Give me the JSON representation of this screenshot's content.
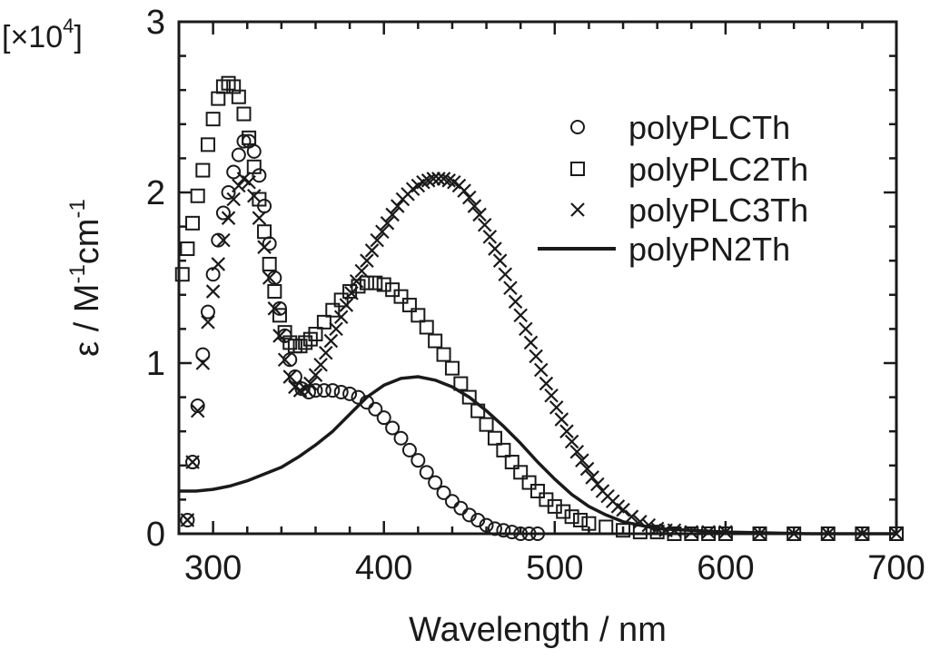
{
  "chart_data": {
    "type": "scatter",
    "title": "",
    "xlabel": "Wavelength / nm",
    "ylabel": {
      "prefix": "ε / M",
      "sup1": "-1",
      "mid": "cm",
      "sup2": "-1"
    },
    "multiplier": {
      "open": "[×10",
      "exp": "4",
      "close": "]"
    },
    "xlim": [
      280,
      700
    ],
    "ylim": [
      0,
      3
    ],
    "xticks": [
      {
        "value": 300,
        "label": "300"
      },
      {
        "value": 400,
        "label": "400"
      },
      {
        "value": 500,
        "label": "500"
      },
      {
        "value": 600,
        "label": "600"
      },
      {
        "value": 700,
        "label": "700"
      }
    ],
    "yticks": [
      {
        "value": 0,
        "label": "0"
      },
      {
        "value": 1,
        "label": "1"
      },
      {
        "value": 2,
        "label": "2"
      },
      {
        "value": 3,
        "label": "3"
      }
    ],
    "grid": false,
    "legend_position": "top-right",
    "series": [
      {
        "name": "polyPLCTh",
        "marker": "circle",
        "x": [
          285,
          288,
          291,
          294,
          297,
          300,
          303,
          306,
          309,
          312,
          315,
          318,
          321,
          324,
          327,
          330,
          333,
          336,
          339,
          342,
          345,
          348,
          352,
          356,
          360,
          365,
          370,
          375,
          380,
          385,
          390,
          395,
          400,
          405,
          410,
          415,
          420,
          425,
          430,
          435,
          440,
          445,
          450,
          455,
          460,
          465,
          470,
          475,
          480,
          485,
          490
        ],
        "y": [
          0.08,
          0.42,
          0.75,
          1.05,
          1.3,
          1.52,
          1.72,
          1.88,
          2.0,
          2.12,
          2.22,
          2.3,
          2.3,
          2.24,
          2.1,
          1.92,
          1.7,
          1.5,
          1.32,
          1.16,
          1.02,
          0.92,
          0.85,
          0.83,
          0.84,
          0.84,
          0.84,
          0.83,
          0.82,
          0.8,
          0.77,
          0.73,
          0.68,
          0.62,
          0.56,
          0.49,
          0.43,
          0.36,
          0.3,
          0.24,
          0.19,
          0.15,
          0.11,
          0.08,
          0.05,
          0.03,
          0.02,
          0.01,
          0.0,
          0.0,
          0.0
        ]
      },
      {
        "name": "polyPLC2Th",
        "marker": "square",
        "x": [
          282,
          285,
          288,
          291,
          294,
          297,
          300,
          303,
          306,
          309,
          312,
          315,
          318,
          321,
          324,
          327,
          330,
          333,
          336,
          339,
          342,
          345,
          348,
          351,
          354,
          357,
          360,
          365,
          370,
          375,
          380,
          385,
          390,
          395,
          400,
          405,
          410,
          415,
          420,
          425,
          430,
          435,
          440,
          445,
          450,
          455,
          460,
          465,
          470,
          475,
          480,
          485,
          490,
          495,
          500,
          505,
          510,
          515,
          520,
          530,
          540,
          550,
          560,
          570,
          580,
          590,
          600,
          620,
          640,
          660,
          680,
          700
        ],
        "y": [
          1.52,
          1.67,
          1.82,
          1.98,
          2.13,
          2.28,
          2.43,
          2.55,
          2.62,
          2.64,
          2.62,
          2.56,
          2.46,
          2.32,
          2.15,
          1.96,
          1.77,
          1.58,
          1.42,
          1.28,
          1.18,
          1.12,
          1.1,
          1.1,
          1.12,
          1.14,
          1.17,
          1.24,
          1.31,
          1.37,
          1.42,
          1.45,
          1.47,
          1.47,
          1.46,
          1.43,
          1.39,
          1.34,
          1.28,
          1.21,
          1.13,
          1.05,
          0.97,
          0.88,
          0.8,
          0.72,
          0.64,
          0.56,
          0.49,
          0.42,
          0.36,
          0.3,
          0.25,
          0.2,
          0.16,
          0.13,
          0.1,
          0.08,
          0.06,
          0.04,
          0.02,
          0.01,
          0.01,
          0.0,
          0.0,
          0.0,
          0.0,
          0.0,
          0.0,
          0.0,
          0.0,
          0.0
        ]
      },
      {
        "name": "polyPLC3Th",
        "marker": "cross",
        "x": [
          285,
          288,
          291,
          294,
          297,
          300,
          303,
          306,
          309,
          312,
          315,
          318,
          321,
          324,
          327,
          330,
          333,
          336,
          339,
          342,
          345,
          348,
          351,
          354,
          357,
          360,
          363,
          366,
          369,
          372,
          375,
          378,
          381,
          384,
          387,
          390,
          393,
          396,
          399,
          402,
          405,
          408,
          411,
          414,
          417,
          420,
          423,
          426,
          429,
          432,
          435,
          438,
          441,
          444,
          447,
          450,
          453,
          456,
          459,
          462,
          465,
          468,
          471,
          474,
          477,
          480,
          483,
          486,
          489,
          492,
          495,
          498,
          501,
          504,
          507,
          510,
          513,
          516,
          519,
          522,
          525,
          528,
          531,
          534,
          537,
          540,
          545,
          550,
          555,
          560,
          565,
          570,
          580,
          590,
          600,
          620,
          640,
          660,
          680,
          700
        ],
        "y": [
          0.08,
          0.42,
          0.72,
          1.0,
          1.24,
          1.42,
          1.58,
          1.72,
          1.85,
          1.96,
          2.04,
          2.08,
          2.06,
          1.98,
          1.85,
          1.68,
          1.5,
          1.32,
          1.16,
          1.02,
          0.92,
          0.86,
          0.84,
          0.85,
          0.88,
          0.93,
          0.99,
          1.06,
          1.13,
          1.2,
          1.27,
          1.34,
          1.41,
          1.48,
          1.54,
          1.6,
          1.66,
          1.72,
          1.77,
          1.82,
          1.87,
          1.92,
          1.96,
          1.99,
          2.02,
          2.04,
          2.06,
          2.07,
          2.08,
          2.08,
          2.08,
          2.07,
          2.06,
          2.04,
          2.01,
          1.97,
          1.92,
          1.87,
          1.81,
          1.74,
          1.67,
          1.6,
          1.52,
          1.44,
          1.36,
          1.28,
          1.2,
          1.12,
          1.04,
          0.96,
          0.88,
          0.81,
          0.74,
          0.67,
          0.6,
          0.54,
          0.48,
          0.43,
          0.38,
          0.33,
          0.29,
          0.25,
          0.22,
          0.19,
          0.16,
          0.14,
          0.1,
          0.07,
          0.05,
          0.03,
          0.02,
          0.02,
          0.01,
          0.01,
          0.01,
          0.0,
          0.0,
          0.0,
          0.0,
          0.0
        ]
      },
      {
        "name": "polyPN2Th",
        "marker": "line",
        "x": [
          280,
          290,
          300,
          310,
          320,
          330,
          340,
          350,
          360,
          370,
          380,
          390,
          400,
          410,
          420,
          430,
          440,
          450,
          460,
          470,
          480,
          490,
          500,
          510,
          520,
          530,
          540,
          550,
          560,
          580,
          600,
          650,
          700
        ],
        "y": [
          0.25,
          0.25,
          0.26,
          0.28,
          0.31,
          0.35,
          0.39,
          0.45,
          0.52,
          0.6,
          0.7,
          0.8,
          0.87,
          0.91,
          0.92,
          0.9,
          0.86,
          0.8,
          0.72,
          0.63,
          0.53,
          0.42,
          0.32,
          0.23,
          0.16,
          0.11,
          0.07,
          0.05,
          0.03,
          0.02,
          0.01,
          0.0,
          0.0
        ]
      }
    ]
  }
}
